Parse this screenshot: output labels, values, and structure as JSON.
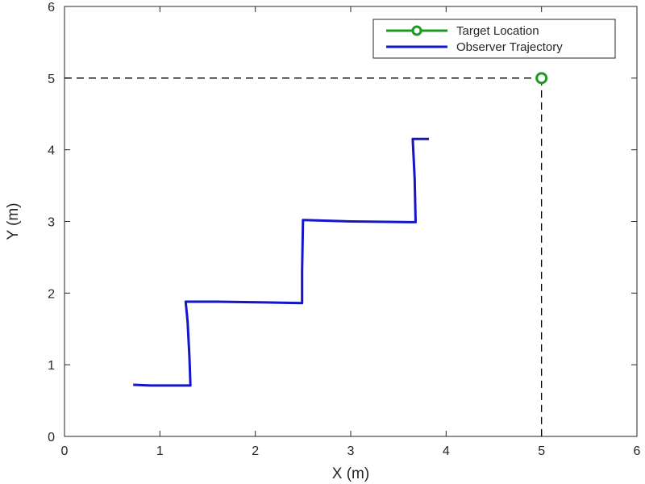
{
  "chart_data": {
    "type": "line",
    "xlabel": "X (m)",
    "ylabel": "Y (m)",
    "xlim": [
      0,
      6
    ],
    "ylim": [
      0,
      6
    ],
    "xticks": [
      "0",
      "1",
      "2",
      "3",
      "4",
      "5",
      "6"
    ],
    "yticks": [
      "0",
      "1",
      "2",
      "3",
      "4",
      "5",
      "6"
    ],
    "grid": false,
    "legend_position": "top-right",
    "series": [
      {
        "name": "Target Location",
        "color": "#1f9a1f",
        "marker": "circle",
        "points": [
          [
            5.0,
            5.0
          ]
        ],
        "guide_lines": "dashed"
      },
      {
        "name": "Observer Trajectory",
        "color": "#1414c8",
        "points": [
          [
            0.72,
            0.72
          ],
          [
            0.9,
            0.71
          ],
          [
            1.32,
            0.71
          ],
          [
            1.31,
            1.1
          ],
          [
            1.29,
            1.6
          ],
          [
            1.27,
            1.88
          ],
          [
            1.6,
            1.88
          ],
          [
            2.1,
            1.87
          ],
          [
            2.49,
            1.86
          ],
          [
            2.49,
            2.3
          ],
          [
            2.5,
            3.02
          ],
          [
            3.0,
            3.0
          ],
          [
            3.68,
            2.99
          ],
          [
            3.67,
            3.6
          ],
          [
            3.65,
            4.15
          ],
          [
            3.82,
            4.15
          ]
        ]
      }
    ]
  }
}
